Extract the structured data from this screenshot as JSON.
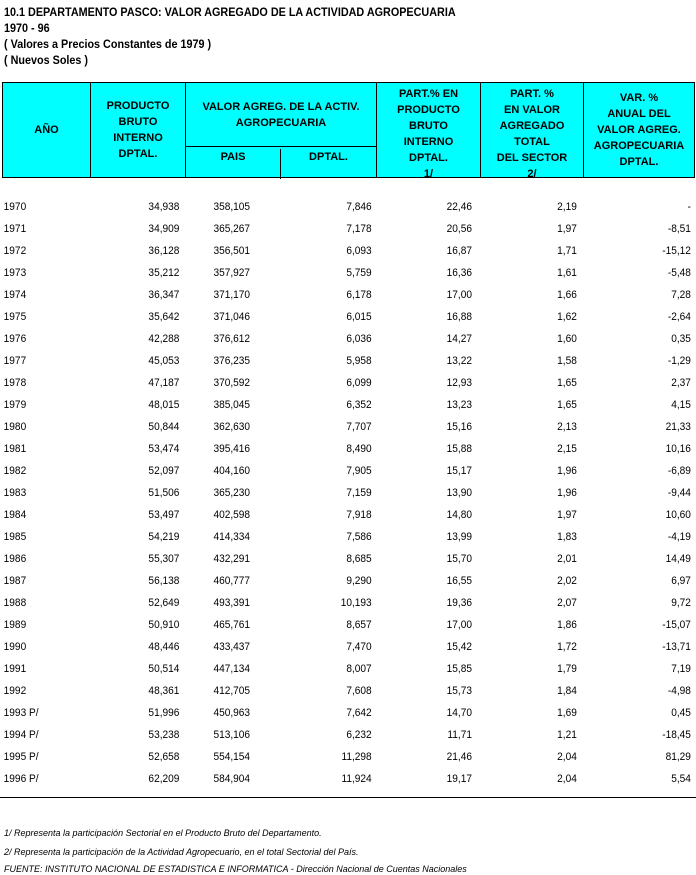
{
  "title": {
    "line1": "10.1  DEPARTAMENTO PASCO: VALOR AGREGADO DE  LA  ACTIVIDAD AGROPECUARIA",
    "line2": " 1970 - 96",
    "line3": "( Valores a Precios Constantes de 1979 )",
    "line4": "( Nuevos Soles )"
  },
  "header": {
    "anio": "AÑO",
    "pbi": [
      "PRODUCTO",
      "BRUTO",
      "INTERNO",
      "DPTAL."
    ],
    "valor": [
      "VALOR AGREG. DE LA ACTIV.",
      "AGROPECUARIA"
    ],
    "pais": "PAIS",
    "dptal": "DPTAL.",
    "part_pbi": [
      "PART.% EN",
      "PRODUCTO",
      "BRUTO",
      "INTERNO",
      "DPTAL.",
      "1/"
    ],
    "part_va": [
      "PART. %",
      "EN VALOR",
      "AGREGADO",
      "TOTAL",
      "DEL SECTOR",
      "2/"
    ],
    "var": [
      "VAR. %",
      "ANUAL DEL",
      "VALOR AGREG.",
      "AGROPECUARIA",
      "DPTAL."
    ]
  },
  "rows": [
    [
      "1970",
      "34,938",
      "358,105",
      "7,846",
      "22,46",
      "2,19",
      "-"
    ],
    [
      "1971",
      "34,909",
      "365,267",
      "7,178",
      "20,56",
      "1,97",
      "-8,51"
    ],
    [
      "1972",
      "36,128",
      "356,501",
      "6,093",
      "16,87",
      "1,71",
      "-15,12"
    ],
    [
      "1973",
      "35,212",
      "357,927",
      "5,759",
      "16,36",
      "1,61",
      "-5,48"
    ],
    [
      "1974",
      "36,347",
      "371,170",
      "6,178",
      "17,00",
      "1,66",
      "7,28"
    ],
    [
      "1975",
      "35,642",
      "371,046",
      "6,015",
      "16,88",
      "1,62",
      "-2,64"
    ],
    [
      "1976",
      "42,288",
      "376,612",
      "6,036",
      "14,27",
      "1,60",
      "0,35"
    ],
    [
      "1977",
      "45,053",
      "376,235",
      "5,958",
      "13,22",
      "1,58",
      "-1,29"
    ],
    [
      "1978",
      "47,187",
      "370,592",
      "6,099",
      "12,93",
      "1,65",
      "2,37"
    ],
    [
      "1979",
      "48,015",
      "385,045",
      "6,352",
      "13,23",
      "1,65",
      "4,15"
    ],
    [
      "1980",
      "50,844",
      "362,630",
      "7,707",
      "15,16",
      "2,13",
      "21,33"
    ],
    [
      "1981",
      "53,474",
      "395,416",
      "8,490",
      "15,88",
      "2,15",
      "10,16"
    ],
    [
      "1982",
      "52,097",
      "404,160",
      "7,905",
      "15,17",
      "1,96",
      "-6,89"
    ],
    [
      "1983",
      "51,506",
      "365,230",
      "7,159",
      "13,90",
      "1,96",
      "-9,44"
    ],
    [
      "1984",
      "53,497",
      "402,598",
      "7,918",
      "14,80",
      "1,97",
      "10,60"
    ],
    [
      "1985",
      "54,219",
      "414,334",
      "7,586",
      "13,99",
      "1,83",
      "-4,19"
    ],
    [
      "1986",
      "55,307",
      "432,291",
      "8,685",
      "15,70",
      "2,01",
      "14,49"
    ],
    [
      "1987",
      "56,138",
      "460,777",
      "9,290",
      "16,55",
      "2,02",
      "6,97"
    ],
    [
      "1988",
      "52,649",
      "493,391",
      "10,193",
      "19,36",
      "2,07",
      "9,72"
    ],
    [
      "1989",
      "50,910",
      "465,761",
      "8,657",
      "17,00",
      "1,86",
      "-15,07"
    ],
    [
      "1990",
      "48,446",
      "433,437",
      "7,470",
      "15,42",
      "1,72",
      "-13,71"
    ],
    [
      "1991",
      "50,514",
      "447,134",
      "8,007",
      "15,85",
      "1,79",
      "7,19"
    ],
    [
      "1992",
      "48,361",
      "412,705",
      "7,608",
      "15,73",
      "1,84",
      "-4,98"
    ],
    [
      "1993 P/",
      "51,996",
      "450,963",
      "7,642",
      "14,70",
      "1,69",
      "0,45"
    ],
    [
      "1994 P/",
      "53,238",
      "513,106",
      "6,232",
      "11,71",
      "1,21",
      "-18,45"
    ],
    [
      "1995 P/",
      "52,658",
      "554,154",
      "11,298",
      "21,46",
      "2,04",
      "81,29"
    ],
    [
      "1996 P/",
      "62,209",
      "584,904",
      "11,924",
      "19,17",
      "2,04",
      "5,54"
    ]
  ],
  "footnotes": [
    "1/ Representa la participación Sectorial en el Producto Bruto del Departamento.",
    "2/ Representa la participación de la Actividad Agropecuario, en el total Sectorial del País.",
    "FUENTE: INSTITUTO NACIONAL DE ESTADISTICA E INFORMATICA - Dirección Nacional de Cuentas Nacionales"
  ],
  "colors": {
    "header_bg": "#00ffff"
  }
}
